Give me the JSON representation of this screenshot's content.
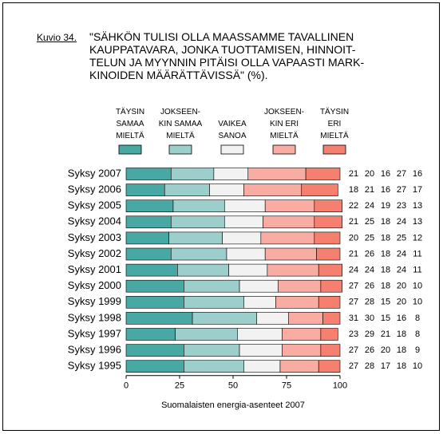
{
  "chart_data": {
    "type": "stacked-bar-horizontal",
    "figure_label": "Kuvio 34.",
    "title": "\"SÄHKÖN TULISI OLLA MAASSAMME TAVALLINEN\nKAUPPATAVARA, JONKA TUOTTAMISEN, HINNOIT-\nTELUN JA MYYNNIN PITÄISI OLLA VAPAASTI MARK-\nKINOIDEN MÄÄRÄTTÄVISSÄ\" (%).",
    "x_label": "Suomalaisten energia-asenteet 2007",
    "categories": [
      "Syksy 2007",
      "Syksy 2006",
      "Syksy 2005",
      "Syksy 2004",
      "Syksy 2003",
      "Syksy 2002",
      "Syksy 2001",
      "Syksy 2000",
      "Syksy 1999",
      "Syksy 1998",
      "Syksy 1997",
      "Syksy 1996",
      "Syksy 1995"
    ],
    "series": [
      {
        "name": "TÄYSIN\nSAMAA\nMIELTÄ",
        "color": "#48a8a4",
        "values": [
          21,
          18,
          22,
          21,
          20,
          21,
          24,
          27,
          27,
          31,
          23,
          27,
          27
        ]
      },
      {
        "name": "JOKSEEN-\nKIN SAMAA\nMIELTÄ",
        "color": "#9ccfcb",
        "values": [
          20,
          21,
          24,
          25,
          25,
          26,
          24,
          26,
          28,
          30,
          29,
          26,
          28
        ]
      },
      {
        "name": "VAIKEA\nSANOA",
        "color": "#f2f2f2",
        "values": [
          16,
          16,
          19,
          18,
          18,
          18,
          18,
          18,
          15,
          15,
          21,
          20,
          17
        ]
      },
      {
        "name": "JOKSEEN-\nKIN ERI\nMIELTÄ",
        "color": "#f9aca2",
        "values": [
          27,
          27,
          23,
          24,
          25,
          24,
          24,
          20,
          20,
          16,
          18,
          18,
          18
        ]
      },
      {
        "name": "TÄYSIN\nERI\nMIELTÄ",
        "color": "#f5806f",
        "values": [
          16,
          17,
          13,
          13,
          12,
          11,
          11,
          10,
          10,
          8,
          8,
          9,
          10
        ]
      }
    ],
    "xlim": [
      0,
      100
    ],
    "xticks": [
      0,
      25,
      50,
      75,
      100
    ]
  }
}
